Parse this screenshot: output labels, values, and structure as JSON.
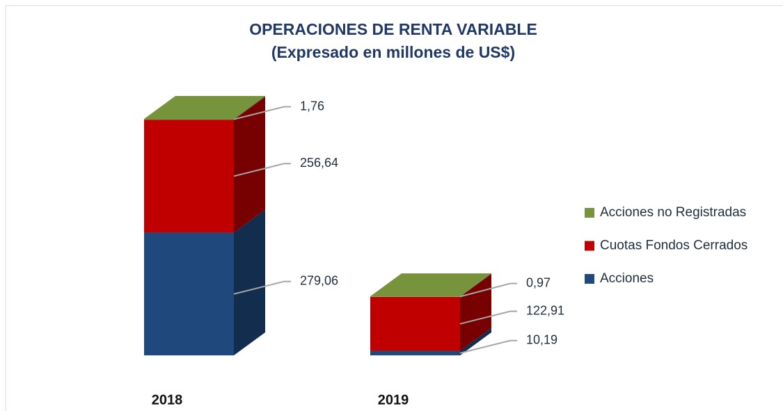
{
  "chart_data": {
    "type": "bar3d_stacked",
    "title": "OPERACIONES DE RENTA VARIABLE",
    "subtitle": "(Expresado en millones de US$)",
    "categories": [
      "2018",
      "2019"
    ],
    "series": [
      {
        "name": "Acciones",
        "color": "#1f497d",
        "values": [
          279.06,
          10.19
        ],
        "value_labels": [
          "279,06",
          "10,19"
        ]
      },
      {
        "name": "Cuotas Fondos Cerrados",
        "color": "#c00000",
        "values": [
          256.64,
          122.91
        ],
        "value_labels": [
          "256,64",
          "122,91"
        ]
      },
      {
        "name": "Acciones no Registradas",
        "color": "#77933c",
        "values": [
          1.76,
          0.97
        ],
        "value_labels": [
          "1,76",
          "0,97"
        ]
      }
    ],
    "legend": "right"
  }
}
